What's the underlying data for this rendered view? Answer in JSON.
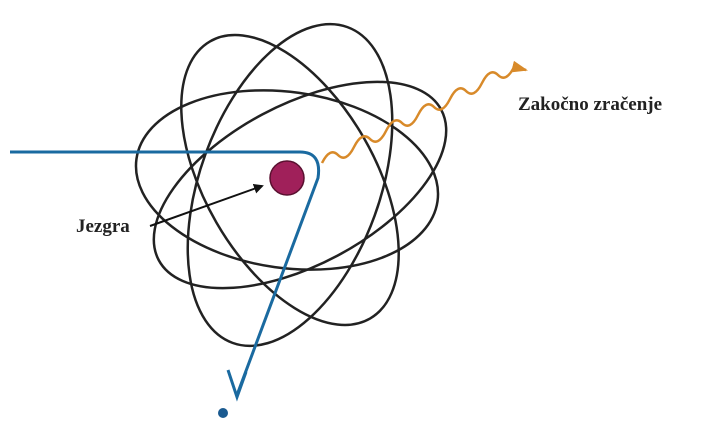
{
  "labels": {
    "radiation": "Zakočno zračenje",
    "nucleus": "Jezgra"
  }
}
